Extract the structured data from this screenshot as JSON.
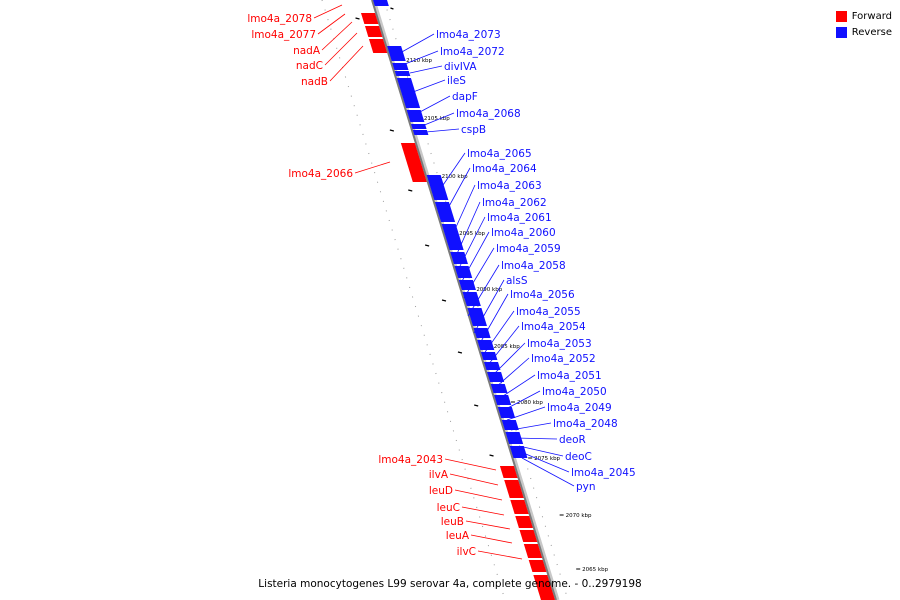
{
  "colors": {
    "forward": "#ff0000",
    "reverse": "#1010ff",
    "axis": "#808080"
  },
  "legend": [
    {
      "label": "Forward",
      "color": "#ff0000"
    },
    {
      "label": "Reverse",
      "color": "#1010ff"
    }
  ],
  "caption": "Listeria monocytogenes L99 serovar 4a, complete genome. - 0..2979198",
  "ticks": [
    "2110 kbp",
    "2105 kbp",
    "2100 kbp",
    "2095 kbp",
    "2090 kbp",
    "2085 kbp",
    "2080 kbp",
    "2075 kbp",
    "2070 kbp",
    "2065 kbp"
  ],
  "genes_forward": [
    "lmo4a_2078",
    "lmo4a_2077",
    "nadA",
    "nadC",
    "nadB",
    "lmo4a_2066",
    "lmo4a_2043",
    "ilvA",
    "leuD",
    "leuC",
    "leuB",
    "leuA",
    "ilvC"
  ],
  "genes_reverse": [
    "lmo4a_2073",
    "lmo4a_2072",
    "divIVA",
    "ileS",
    "dapF",
    "lmo4a_2068",
    "cspB",
    "lmo4a_2065",
    "lmo4a_2064",
    "lmo4a_2063",
    "lmo4a_2062",
    "lmo4a_2061",
    "lmo4a_2060",
    "lmo4a_2059",
    "lmo4a_2058",
    "alsS",
    "lmo4a_2056",
    "lmo4a_2055",
    "lmo4a_2054",
    "lmo4a_2053",
    "lmo4a_2052",
    "lmo4a_2051",
    "lmo4a_2050",
    "lmo4a_2049",
    "lmo4a_2048",
    "deoR",
    "deoC",
    "lmo4a_2045",
    "pyn"
  ]
}
